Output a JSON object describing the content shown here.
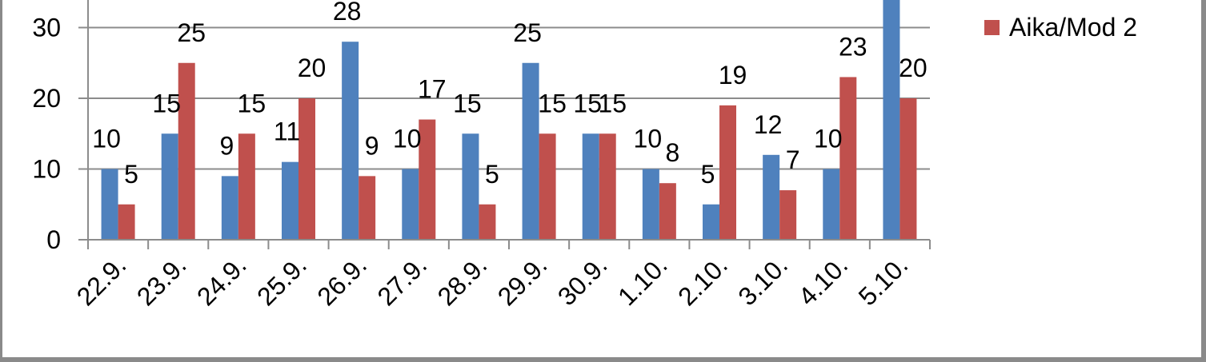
{
  "chart_data": {
    "type": "bar",
    "categories": [
      "22.9.",
      "23.9.",
      "24.9.",
      "25.9.",
      "26.9.",
      "27.9.",
      "28.9.",
      "29.9.",
      "30.9.",
      "1.10.",
      "2.10.",
      "3.10.",
      "4.10.",
      "5.10."
    ],
    "series": [
      {
        "values": [
          10,
          15,
          9,
          11,
          28,
          10,
          15,
          25,
          15,
          10,
          5,
          12,
          10,
          36
        ],
        "color": "#4F81BD",
        "labels": [
          "10",
          "15",
          "9",
          "11",
          "28",
          "10",
          "15",
          "25",
          "15",
          "10",
          "5",
          "12",
          "10",
          ""
        ]
      },
      {
        "name": "Aika/Mod 2",
        "values": [
          5,
          25,
          15,
          20,
          9,
          17,
          5,
          15,
          15,
          8,
          19,
          7,
          23,
          20
        ],
        "color": "#C0504D",
        "labels": [
          "5",
          "25",
          "15",
          "20",
          "9",
          "17",
          "5",
          "15",
          "15",
          "8",
          "19",
          "7",
          "23",
          "20"
        ]
      }
    ],
    "y_ticks": [
      "0",
      "10",
      "20",
      "30"
    ],
    "ylim": [
      0,
      40
    ],
    "grid": true,
    "legend_position": "right"
  }
}
